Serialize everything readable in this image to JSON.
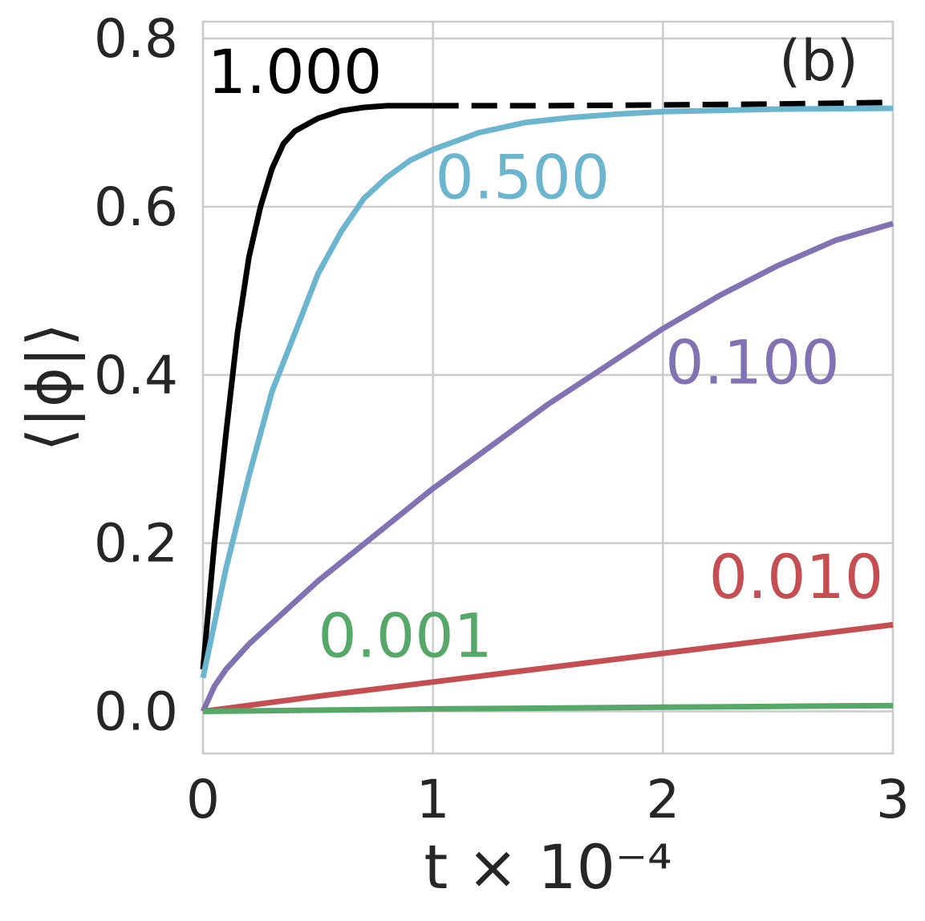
{
  "chart_data": {
    "type": "line",
    "panel_label": "(b)",
    "xlabel": "t × 10⁻⁴",
    "ylabel": "⟨|ϕ|⟩",
    "xlim": [
      0,
      3
    ],
    "ylim": [
      -0.05,
      0.82
    ],
    "xticks": [
      0,
      1,
      2,
      3
    ],
    "xtick_labels": [
      "0",
      "1",
      "2",
      "3"
    ],
    "yticks": [
      0.0,
      0.2,
      0.4,
      0.6,
      0.8
    ],
    "ytick_labels": [
      "0.0",
      "0.2",
      "0.4",
      "0.6",
      "0.8"
    ],
    "grid": true,
    "legend": "none",
    "series": [
      {
        "name": "1.000",
        "color": "#000000",
        "x": [
          0,
          0.05,
          0.1,
          0.15,
          0.2,
          0.25,
          0.3,
          0.35,
          0.4,
          0.5,
          0.6,
          0.7,
          0.8,
          0.9,
          1.0
        ],
        "y": [
          0.05,
          0.2,
          0.33,
          0.45,
          0.54,
          0.6,
          0.645,
          0.675,
          0.69,
          0.705,
          0.714,
          0.718,
          0.72,
          0.72,
          0.72
        ],
        "dashed_continuation": {
          "x": [
            1.0,
            1.5,
            2.0,
            2.5,
            3.0
          ],
          "y": [
            0.72,
            0.72,
            0.721,
            0.722,
            0.724
          ]
        }
      },
      {
        "name": "0.500",
        "color": "#6bb5cf",
        "x": [
          0,
          0.1,
          0.2,
          0.3,
          0.4,
          0.5,
          0.6,
          0.7,
          0.8,
          0.9,
          1.0,
          1.2,
          1.4,
          1.6,
          1.8,
          2.0,
          2.5,
          3.0
        ],
        "y": [
          0.04,
          0.17,
          0.28,
          0.38,
          0.45,
          0.52,
          0.57,
          0.61,
          0.635,
          0.655,
          0.668,
          0.688,
          0.7,
          0.706,
          0.71,
          0.713,
          0.716,
          0.717
        ]
      },
      {
        "name": "0.100",
        "color": "#8172b3",
        "x": [
          0,
          0.05,
          0.1,
          0.2,
          0.3,
          0.5,
          0.75,
          1.0,
          1.25,
          1.5,
          1.75,
          2.0,
          2.25,
          2.5,
          2.75,
          3.0
        ],
        "y": [
          0.0,
          0.03,
          0.05,
          0.08,
          0.105,
          0.155,
          0.21,
          0.265,
          0.315,
          0.365,
          0.41,
          0.455,
          0.495,
          0.53,
          0.56,
          0.58
        ]
      },
      {
        "name": "0.010",
        "color": "#c44e52",
        "x": [
          0,
          0.5,
          1.0,
          1.5,
          2.0,
          2.5,
          3.0
        ],
        "y": [
          0.0,
          0.018,
          0.035,
          0.052,
          0.069,
          0.086,
          0.103
        ]
      },
      {
        "name": "0.001",
        "color": "#55a868",
        "x": [
          0,
          1.0,
          2.0,
          3.0
        ],
        "y": [
          0.0,
          0.003,
          0.005,
          0.007
        ]
      }
    ],
    "annotations": [
      {
        "text": "1.000",
        "color": "#000000",
        "x": 0.02,
        "y": 0.735
      },
      {
        "text": "0.500",
        "color": "#6bb5cf",
        "x": 1.01,
        "y": 0.61
      },
      {
        "text": "0.100",
        "color": "#8172b3",
        "x": 2.01,
        "y": 0.39
      },
      {
        "text": "0.010",
        "color": "#c44e52",
        "x": 2.2,
        "y": 0.135
      },
      {
        "text": "0.001",
        "color": "#55a868",
        "x": 0.5,
        "y": 0.065
      }
    ]
  }
}
